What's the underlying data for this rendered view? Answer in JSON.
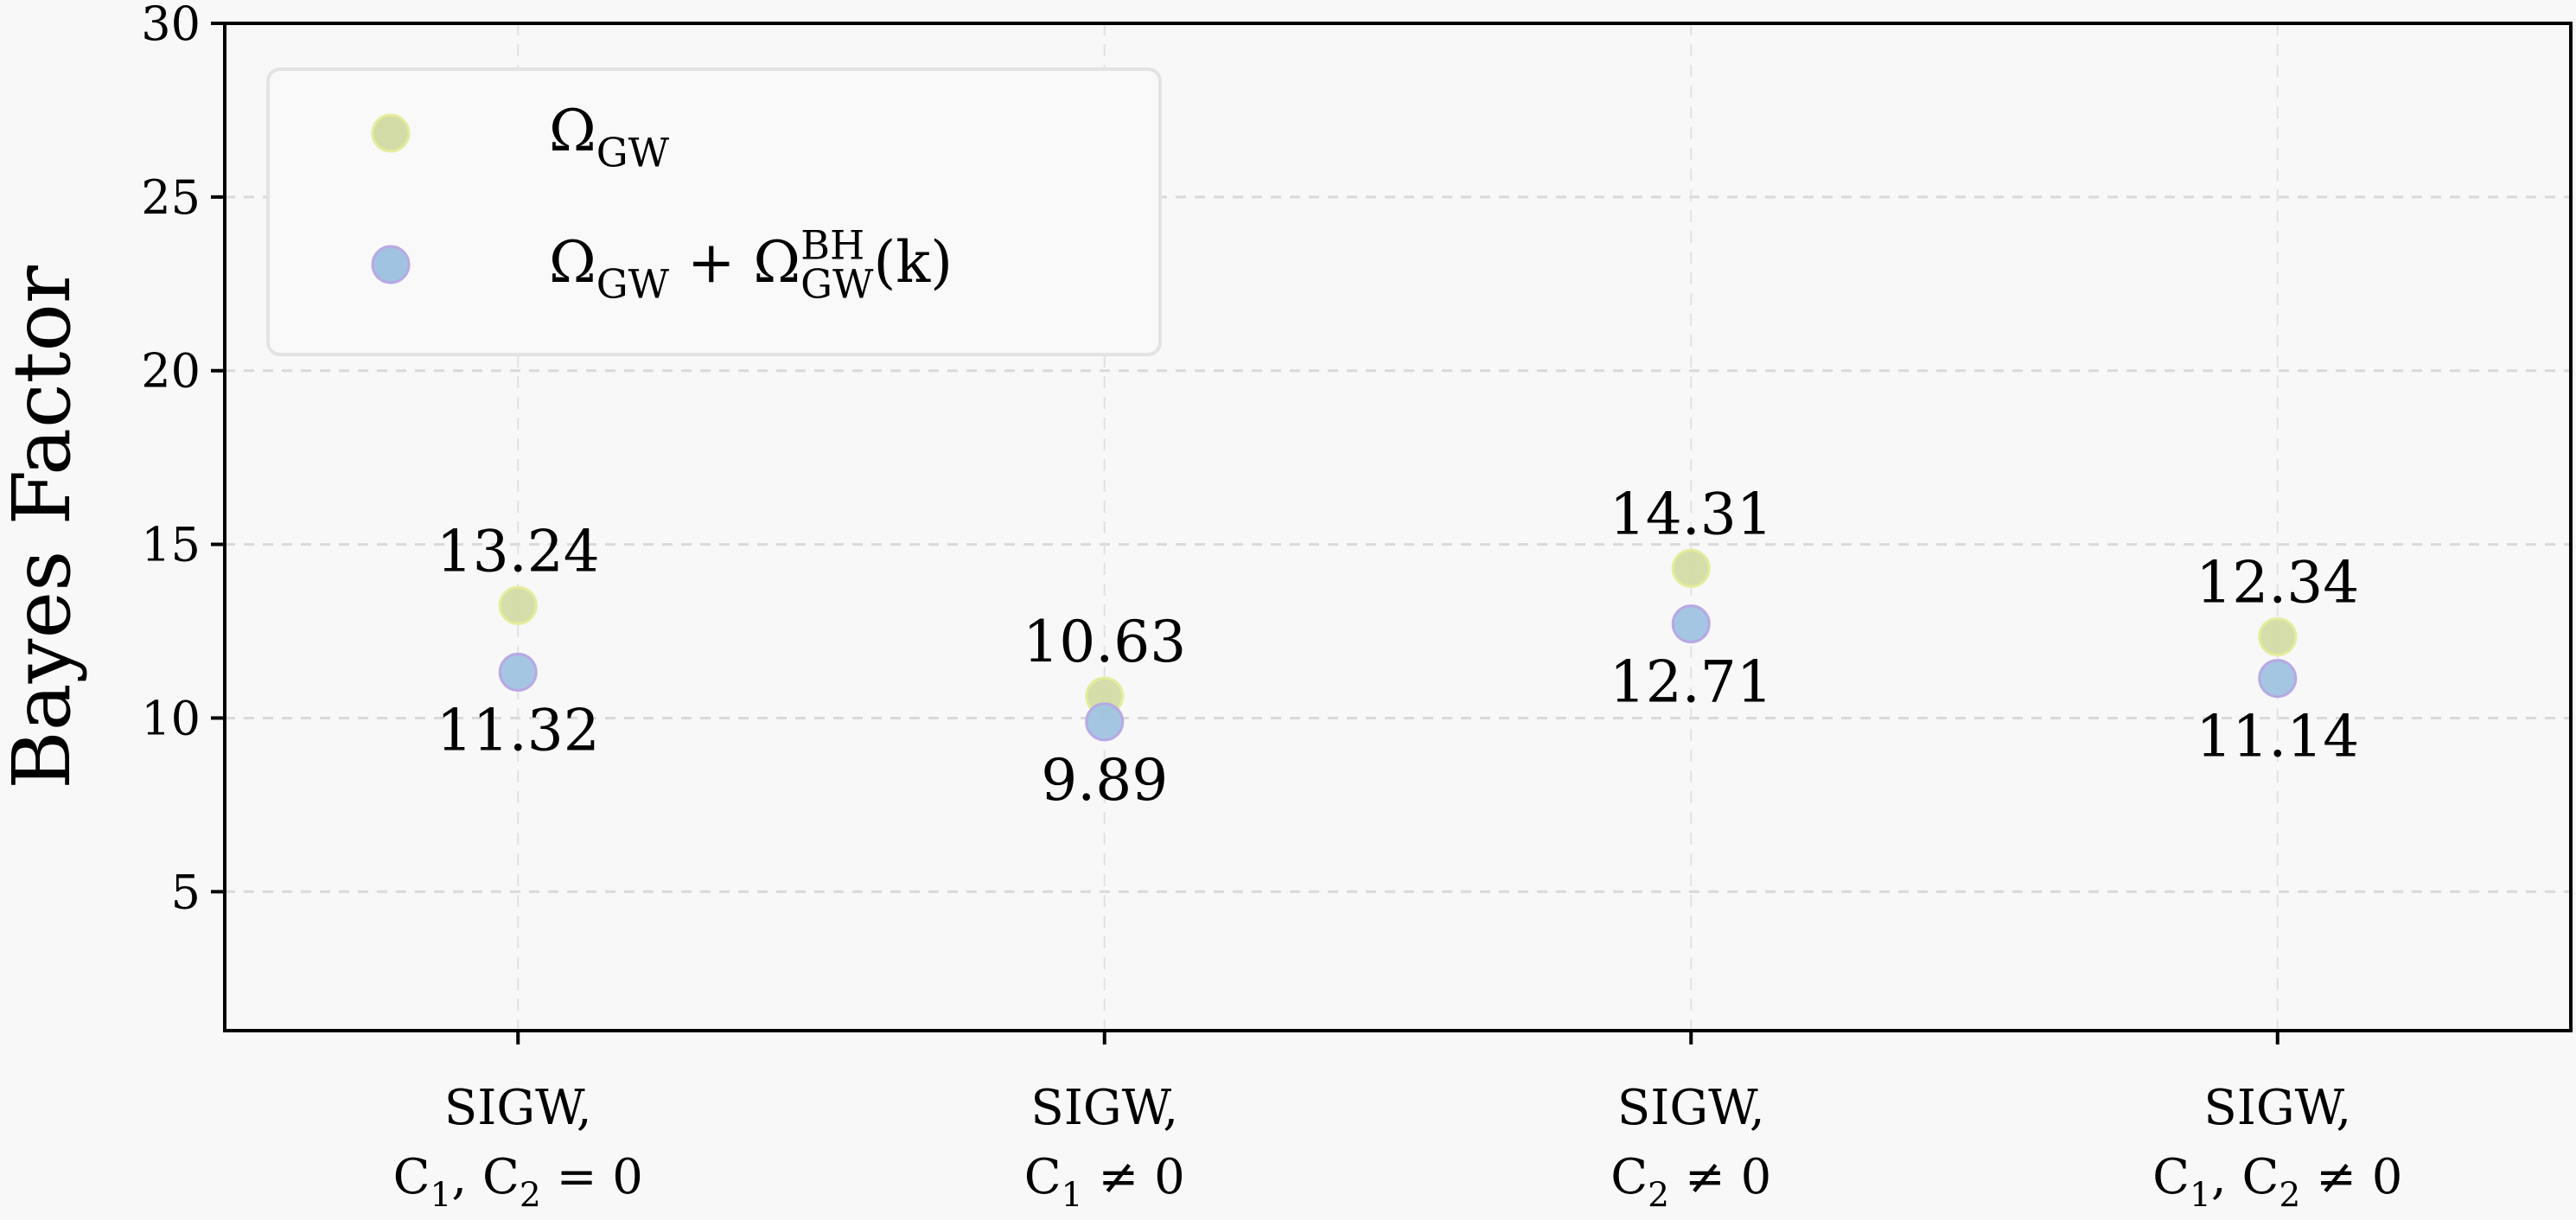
{
  "chart_data": {
    "type": "scatter",
    "title": "",
    "xlabel": "",
    "ylabel": "Bayes Factor",
    "categories": [
      [
        "SIGW,",
        "C_1, C_2 = 0"
      ],
      [
        "SIGW,",
        "C_1 ≠ 0"
      ],
      [
        "SIGW,",
        "C_2 ≠ 0"
      ],
      [
        "SIGW,",
        "C_1, C_2 ≠ 0"
      ]
    ],
    "series": [
      {
        "name": "Ω_GW",
        "values": [
          13.24,
          10.63,
          14.31,
          12.34
        ],
        "labels": [
          "13.24",
          "10.63",
          "14.31",
          "12.34"
        ],
        "color": "#d3dba6",
        "edge": "#e4ec9c",
        "label_position": "above"
      },
      {
        "name": "Ω_GW + Ω^BH_GW(k)",
        "values": [
          11.32,
          9.89,
          12.71,
          11.14
        ],
        "labels": [
          "11.32",
          "9.89",
          "12.71",
          "11.14"
        ],
        "color": "#9fc3e0",
        "edge": "#b8a8e4",
        "label_position": "below"
      }
    ],
    "ylim": [
      1,
      30
    ],
    "xlim": [
      -0.5,
      3.5
    ],
    "yticks": [
      5,
      10,
      15,
      20,
      25,
      30
    ],
    "ytick_labels": [
      "5",
      "10",
      "15",
      "20",
      "25",
      "30"
    ],
    "grid": true,
    "grid_style": "dashed",
    "legend_position": "top-left",
    "background": "#f8f8f8"
  }
}
